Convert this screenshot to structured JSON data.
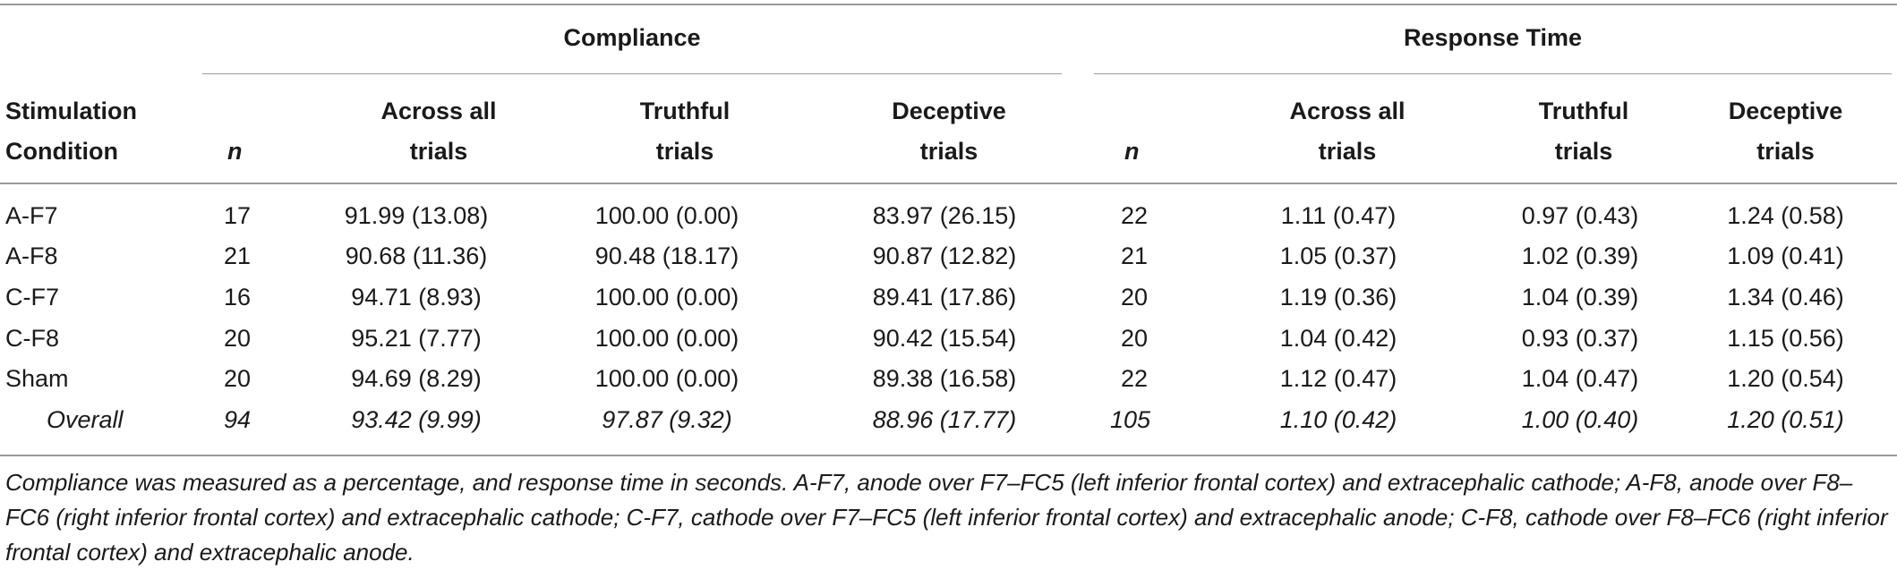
{
  "table": {
    "group_headers": {
      "compliance": "Compliance",
      "response_time": "Response Time"
    },
    "col_headers": {
      "condition_line1": "Stimulation",
      "condition_line2": "Condition",
      "n": "n",
      "across_line1": "Across all",
      "across_line2": "trials",
      "truthful_line1": "Truthful",
      "truthful_line2": "trials",
      "deceptive_line1": "Deceptive",
      "deceptive_line2": "trials"
    },
    "rows": [
      {
        "condition": "A-F7",
        "c_n": "17",
        "c_all": "91.99 (13.08)",
        "c_truth": "100.00 (0.00)",
        "c_dec": "83.97 (26.15)",
        "r_n": "22",
        "r_all": "1.11 (0.47)",
        "r_truth": "0.97 (0.43)",
        "r_dec": "1.24 (0.58)"
      },
      {
        "condition": "A-F8",
        "c_n": "21",
        "c_all": "90.68 (11.36)",
        "c_truth": "90.48 (18.17)",
        "c_dec": "90.87 (12.82)",
        "r_n": "21",
        "r_all": "1.05 (0.37)",
        "r_truth": "1.02 (0.39)",
        "r_dec": "1.09 (0.41)"
      },
      {
        "condition": "C-F7",
        "c_n": "16",
        "c_all": "94.71 (8.93)",
        "c_truth": "100.00 (0.00)",
        "c_dec": "89.41 (17.86)",
        "r_n": "20",
        "r_all": "1.19 (0.36)",
        "r_truth": "1.04 (0.39)",
        "r_dec": "1.34 (0.46)"
      },
      {
        "condition": "C-F8",
        "c_n": "20",
        "c_all": "95.21 (7.77)",
        "c_truth": "100.00 (0.00)",
        "c_dec": "90.42 (15.54)",
        "r_n": "20",
        "r_all": "1.04 (0.42)",
        "r_truth": "0.93 (0.37)",
        "r_dec": "1.15 (0.56)"
      },
      {
        "condition": "Sham",
        "c_n": "20",
        "c_all": "94.69 (8.29)",
        "c_truth": "100.00 (0.00)",
        "c_dec": "89.38 (16.58)",
        "r_n": "22",
        "r_all": "1.12 (0.47)",
        "r_truth": "1.04 (0.47)",
        "r_dec": "1.20 (0.54)"
      },
      {
        "condition": "Overall",
        "c_n": "94",
        "c_all": "93.42 (9.99)",
        "c_truth": "97.87 (9.32)",
        "c_dec": "88.96 (17.77)",
        "r_n": "105",
        "r_all": "1.10 (0.42)",
        "r_truth": "1.00 (0.40)",
        "r_dec": "1.20 (0.51)"
      }
    ],
    "footnote": "Compliance was measured as a percentage, and response time in seconds. A-F7, anode over F7–FC5 (left inferior frontal cortex) and extracephalic cathode; A-F8, anode over F8–FC6 (right inferior frontal cortex) and extracephalic cathode; C-F7, cathode over F7–FC5 (left inferior frontal cortex) and extracephalic anode; C-F8, cathode over F8–FC6 (right inferior frontal cortex) and extracephalic anode."
  }
}
